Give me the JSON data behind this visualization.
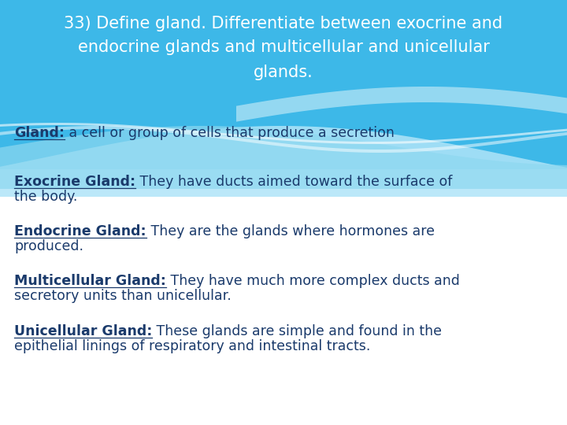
{
  "title_line1": "33) Define gland. Differentiate between exocrine and",
  "title_line2": "endocrine glands and multicellular and unicellular",
  "title_line3": "glands.",
  "title_bg_color": "#3db8e8",
  "title_text_color": "#ffffff",
  "body_bg_color": "#ffffff",
  "wave_color1": "#8dd8f0",
  "wave_color2": "#b0e4f8",
  "wave_color3": "#d0eef8",
  "body_text_color": "#1a3a6b",
  "entries": [
    {
      "label": "Gland:",
      "text": " a cell or group of cells that produce a secretion"
    },
    {
      "label": "Exocrine Gland:",
      "text": " They have ducts aimed toward the surface of\nthe body."
    },
    {
      "label": "Endocrine Gland:",
      "text": " They are the glands where hormones are\nproduced."
    },
    {
      "label": "Multicellular Gland:",
      "text": " They have much more complex ducts and\nsecretory units than unicellular."
    },
    {
      "label": "Unicellular Gland:",
      "text": " These glands are simple and found in the\nepithelial linings of respiratory and intestinal tracts."
    }
  ],
  "figsize": [
    7.2,
    5.4
  ],
  "dpi": 100
}
